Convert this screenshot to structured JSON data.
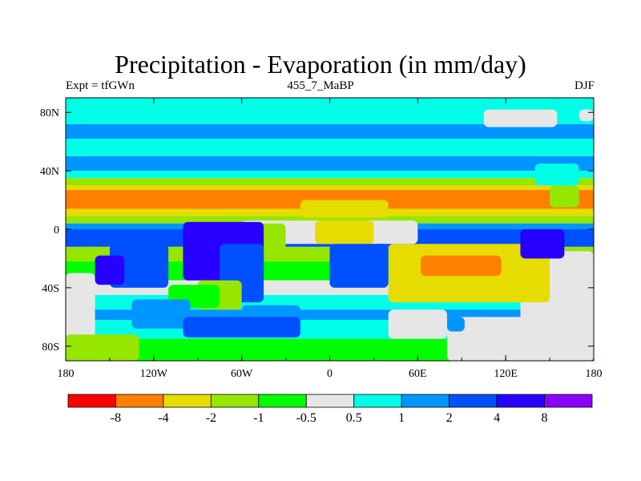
{
  "header": {
    "title": "Precipitation - Evaporation (in mm/day)",
    "left_label": "Expt = tfGWn",
    "center_label": "455_7_MaBP",
    "right_label": "DJF"
  },
  "chart_data": {
    "type": "heatmap",
    "title": "Precipitation - Evaporation (in mm/day)",
    "xlabel": "",
    "ylabel": "",
    "x_ticks": [
      "180",
      "120W",
      "60W",
      "0",
      "60E",
      "120E",
      "180"
    ],
    "y_ticks": [
      "80N",
      "40N",
      "0",
      "40S",
      "80S"
    ],
    "xlim": [
      -180,
      180
    ],
    "ylim": [
      -90,
      90
    ],
    "colorbar": {
      "tick_labels": [
        "-8",
        "-4",
        "-2",
        "-1",
        "-0.5",
        "0.5",
        "1",
        "2",
        "4",
        "8"
      ],
      "colors": [
        "#ff0000",
        "#ff8000",
        "#e6dc00",
        "#96e600",
        "#00ff00",
        "#e6e6e6",
        "#00ffe6",
        "#0096ff",
        "#0050ff",
        "#2800ff",
        "#8c00ff"
      ]
    },
    "bands": [
      {
        "lat_top": 90,
        "lat_bottom": 72,
        "color": "#00ffe6"
      },
      {
        "lat_top": 72,
        "lat_bottom": 62,
        "color": "#0096ff"
      },
      {
        "lat_top": 62,
        "lat_bottom": 50,
        "color": "#00ffe6"
      },
      {
        "lat_top": 50,
        "lat_bottom": 40,
        "color": "#0096ff"
      },
      {
        "lat_top": 40,
        "lat_bottom": 35,
        "color": "#00ffe6"
      },
      {
        "lat_top": 35,
        "lat_bottom": 30,
        "color": "#96e600"
      },
      {
        "lat_top": 30,
        "lat_bottom": 27,
        "color": "#e6dc00"
      },
      {
        "lat_top": 27,
        "lat_bottom": 14,
        "color": "#ff8000"
      },
      {
        "lat_top": 14,
        "lat_bottom": 9,
        "color": "#e6dc00"
      },
      {
        "lat_top": 9,
        "lat_bottom": 4,
        "color": "#96e600"
      },
      {
        "lat_top": 4,
        "lat_bottom": 0,
        "color": "#0096ff"
      },
      {
        "lat_top": 0,
        "lat_bottom": -12,
        "color": "#0050ff"
      },
      {
        "lat_top": -12,
        "lat_bottom": -22,
        "color": "#96e600"
      },
      {
        "lat_top": -22,
        "lat_bottom": -35,
        "color": "#00ff00"
      },
      {
        "lat_top": -35,
        "lat_bottom": -45,
        "color": "#e6e6e6"
      },
      {
        "lat_top": -45,
        "lat_bottom": -55,
        "color": "#00ffe6"
      },
      {
        "lat_top": -55,
        "lat_bottom": -62,
        "color": "#0096ff"
      },
      {
        "lat_top": -62,
        "lat_bottom": -75,
        "color": "#00ffe6"
      },
      {
        "lat_top": -75,
        "lat_bottom": -90,
        "color": "#00ff00"
      }
    ],
    "regions": [
      {
        "lon": -180,
        "lat": -30,
        "w": 20,
        "h": 55,
        "color": "#e6e6e6"
      },
      {
        "lon": 130,
        "lat": -15,
        "w": 50,
        "h": 70,
        "color": "#e6e6e6"
      },
      {
        "lon": 40,
        "lat": -10,
        "w": 110,
        "h": 40,
        "color": "#e6dc00"
      },
      {
        "lon": 62,
        "lat": -18,
        "w": 55,
        "h": 14,
        "color": "#ff8000"
      },
      {
        "lon": -60,
        "lat": 6,
        "w": 120,
        "h": 16,
        "color": "#e6e6e6"
      },
      {
        "lon": -50,
        "lat": 4,
        "w": 20,
        "h": 18,
        "color": "#96e600"
      },
      {
        "lon": -10,
        "lat": 6,
        "w": 40,
        "h": 16,
        "color": "#e6dc00"
      },
      {
        "lon": -100,
        "lat": 5,
        "w": 55,
        "h": 40,
        "color": "#2800ff"
      },
      {
        "lon": -75,
        "lat": -10,
        "w": 30,
        "h": 40,
        "color": "#0050ff"
      },
      {
        "lon": -150,
        "lat": -10,
        "w": 40,
        "h": 30,
        "color": "#0050ff"
      },
      {
        "lon": -160,
        "lat": -18,
        "w": 20,
        "h": 20,
        "color": "#2800ff"
      },
      {
        "lon": 0,
        "lat": -10,
        "w": 40,
        "h": 30,
        "color": "#0050ff"
      },
      {
        "lon": 130,
        "lat": 0,
        "w": 30,
        "h": 20,
        "color": "#2800ff"
      },
      {
        "lon": -90,
        "lat": -35,
        "w": 30,
        "h": 20,
        "color": "#96e600"
      },
      {
        "lon": -110,
        "lat": -38,
        "w": 35,
        "h": 16,
        "color": "#00ff00"
      },
      {
        "lon": -135,
        "lat": -48,
        "w": 40,
        "h": 20,
        "color": "#0096ff"
      },
      {
        "lon": -60,
        "lat": -52,
        "w": 40,
        "h": 16,
        "color": "#0096ff"
      },
      {
        "lon": -100,
        "lat": -60,
        "w": 80,
        "h": 14,
        "color": "#0050ff"
      },
      {
        "lon": 40,
        "lat": -55,
        "w": 40,
        "h": 20,
        "color": "#e6e6e6"
      },
      {
        "lon": 80,
        "lat": -60,
        "w": 100,
        "h": 30,
        "color": "#e6e6e6"
      },
      {
        "lon": 80,
        "lat": -60,
        "w": 12,
        "h": 10,
        "color": "#0096ff"
      },
      {
        "lon": -180,
        "lat": -72,
        "w": 50,
        "h": 18,
        "color": "#96e600"
      },
      {
        "lon": 105,
        "lat": 82,
        "w": 50,
        "h": 12,
        "color": "#e6e6e6"
      },
      {
        "lon": 170,
        "lat": 82,
        "w": 10,
        "h": 8,
        "color": "#e6e6e6"
      },
      {
        "lon": -20,
        "lat": 20,
        "w": 60,
        "h": 12,
        "color": "#e6dc00"
      },
      {
        "lon": 140,
        "lat": 45,
        "w": 30,
        "h": 15,
        "color": "#00ffe6"
      },
      {
        "lon": 150,
        "lat": 30,
        "w": 20,
        "h": 15,
        "color": "#96e600"
      }
    ]
  }
}
